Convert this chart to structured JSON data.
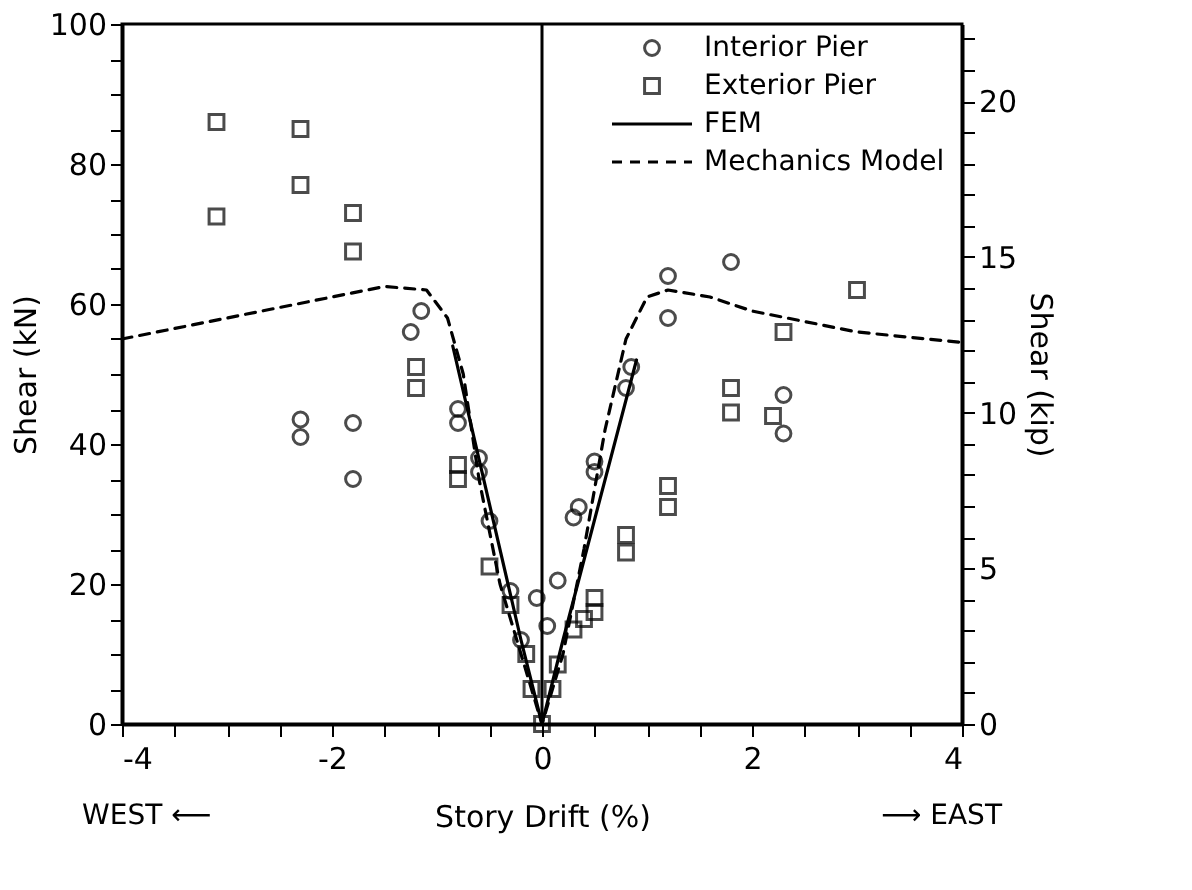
{
  "chart_data": {
    "type": "scatter",
    "xlabel": "Story Drift (%)",
    "ylabel": "Shear (kN)",
    "y2label": "Shear (kip)",
    "annotations": [
      "WEST ⟵",
      "⟶ EAST"
    ],
    "xlim": [
      -4,
      4
    ],
    "ylim": [
      0,
      100
    ],
    "y2lim": [
      0,
      22.48
    ],
    "xticks": [
      -4,
      {
        "value": -3.5,
        "label": null
      },
      {
        "value": -3,
        "label": null
      },
      {
        "value": -2.5,
        "label": null
      },
      -2,
      {
        "value": -1.5,
        "label": null
      },
      {
        "value": -1,
        "label": null
      },
      {
        "value": -0.5,
        "label": null
      },
      0,
      {
        "value": 0.5,
        "label": null
      },
      {
        "value": 1,
        "label": null
      },
      {
        "value": 1.5,
        "label": null
      },
      2,
      {
        "value": 2.5,
        "label": null
      },
      {
        "value": 3,
        "label": null
      },
      {
        "value": 3.5,
        "label": null
      },
      4
    ],
    "yticks": [
      0,
      {
        "value": 5,
        "label": null
      },
      {
        "value": 10,
        "label": null
      },
      {
        "value": 15,
        "label": null
      },
      20,
      {
        "value": 25,
        "label": null
      },
      {
        "value": 30,
        "label": null
      },
      {
        "value": 35,
        "label": null
      },
      40,
      {
        "value": 45,
        "label": null
      },
      {
        "value": 50,
        "label": null
      },
      {
        "value": 55,
        "label": null
      },
      60,
      {
        "value": 65,
        "label": null
      },
      {
        "value": 70,
        "label": null
      },
      {
        "value": 75,
        "label": null
      },
      80,
      {
        "value": 85,
        "label": null
      },
      {
        "value": 90,
        "label": null
      },
      {
        "value": 95,
        "label": null
      },
      100
    ],
    "y2ticks": [
      0,
      {
        "value": 1,
        "label": null
      },
      {
        "value": 2,
        "label": null
      },
      {
        "value": 3,
        "label": null
      },
      {
        "value": 4,
        "label": null
      },
      5,
      {
        "value": 6,
        "label": null
      },
      {
        "value": 7,
        "label": null
      },
      {
        "value": 8,
        "label": null
      },
      {
        "value": 9,
        "label": null
      },
      10,
      {
        "value": 11,
        "label": null
      },
      {
        "value": 12,
        "label": null
      },
      {
        "value": 13,
        "label": null
      },
      {
        "value": 14,
        "label": null
      },
      15,
      {
        "value": 16,
        "label": null
      },
      {
        "value": 17,
        "label": null
      },
      {
        "value": 18,
        "label": null
      },
      {
        "value": 19,
        "label": null
      },
      20,
      {
        "value": 21,
        "label": null
      },
      {
        "value": 22,
        "label": null
      }
    ],
    "grid": false,
    "legend": "top right",
    "ref_lines": [
      {
        "axis": "x",
        "value": 0,
        "color": "#000000",
        "line_style": "solid"
      }
    ],
    "series": [
      {
        "name": "Interior Pier",
        "marker": "circle",
        "color": "#000000",
        "x": [
          -2.3,
          -2.3,
          -1.8,
          -1.8,
          -1.25,
          -1.15,
          -0.8,
          -0.8,
          -0.6,
          -0.6,
          -0.5,
          -0.3,
          -0.2,
          -0.05,
          0.05,
          0.15,
          0.3,
          0.35,
          0.5,
          0.5,
          0.8,
          0.85,
          1.2,
          1.2,
          1.8,
          2.3,
          2.3
        ],
        "values": [
          43.5,
          41,
          43,
          35,
          56,
          59,
          45,
          43,
          38,
          36,
          29,
          19,
          12,
          18,
          14,
          20.5,
          29.5,
          31,
          37.5,
          36,
          48,
          51,
          64,
          58,
          66,
          47,
          41.5
        ]
      },
      {
        "name": "Exterior Pier",
        "marker": "square",
        "color": "#000000",
        "x": [
          -3.1,
          -3.1,
          -2.3,
          -2.3,
          -1.8,
          -1.8,
          -1.2,
          -1.2,
          -0.8,
          -0.8,
          -0.5,
          -0.3,
          -0.15,
          -0.1,
          0,
          0.1,
          0.15,
          0.3,
          0.4,
          0.5,
          0.5,
          0.8,
          0.8,
          1.2,
          1.2,
          1.8,
          1.8,
          2.2,
          2.3,
          3.0
        ],
        "values": [
          86,
          72.5,
          85,
          77,
          73,
          67.5,
          51,
          48,
          37,
          35,
          22.5,
          17,
          10,
          5,
          0,
          5,
          8.5,
          13.5,
          15,
          18,
          16,
          27,
          24.5,
          34,
          31,
          48,
          44.5,
          44,
          56,
          62
        ]
      },
      {
        "name": "FEM",
        "type": "line",
        "line_style": "solid",
        "color": "#000000",
        "x": [
          -0.85,
          -0.2,
          0,
          0.2,
          0.9
        ],
        "values": [
          54,
          12,
          0,
          12,
          52
        ]
      },
      {
        "name": "Mechanics Model",
        "type": "line",
        "line_style": "dashed",
        "color": "#000000",
        "x": [
          -4,
          -3,
          -2,
          -1.5,
          -1.1,
          -0.9,
          -0.75,
          -0.6,
          -0.4,
          -0.2,
          0,
          0.2,
          0.4,
          0.6,
          0.8,
          1.0,
          1.2,
          1.6,
          2,
          3,
          4
        ],
        "values": [
          55,
          58,
          61,
          62.5,
          62,
          58,
          50,
          35,
          20,
          10,
          0,
          10,
          25,
          42,
          55,
          61,
          62,
          61,
          59,
          56,
          54.5
        ]
      }
    ]
  }
}
